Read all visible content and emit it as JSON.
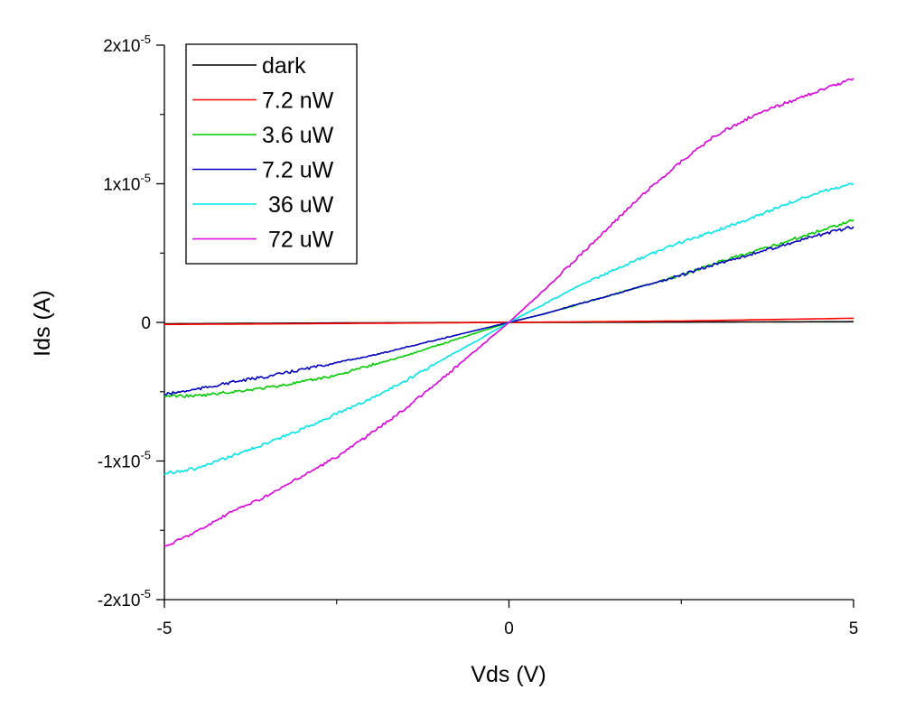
{
  "chart_data": {
    "type": "line",
    "xlabel": "Vds (V)",
    "ylabel": "Ids (A)",
    "xlim": [
      -5,
      5
    ],
    "ylim": [
      -2e-05,
      2e-05
    ],
    "x_ticks": [
      {
        "value": -5,
        "label": "-5"
      },
      {
        "value": 0,
        "label": "0"
      },
      {
        "value": 5,
        "label": "5"
      }
    ],
    "y_ticks": [
      {
        "value": 2e-05,
        "mantissa": "2x10",
        "exponent": "-5"
      },
      {
        "value": 1e-05,
        "mantissa": "1x10",
        "exponent": "-5"
      },
      {
        "value": 0,
        "mantissa": "0",
        "exponent": ""
      },
      {
        "value": -1e-05,
        "mantissa": "-1x10",
        "exponent": "-5"
      },
      {
        "value": -2e-05,
        "mantissa": "-2x10",
        "exponent": "-5"
      }
    ],
    "legend_position": "top-left",
    "grid": false,
    "series": [
      {
        "name": "dark",
        "color": "#000000",
        "points": [
          [
            -5,
            -1e-07
          ],
          [
            -2.5,
            -4e-08
          ],
          [
            0,
            0
          ],
          [
            2.5,
            2e-08
          ],
          [
            5,
            5e-08
          ]
        ]
      },
      {
        "name": "7.2 nW",
        "color": "#ff0000",
        "points": [
          [
            -5,
            -1.5e-07
          ],
          [
            -2.5,
            -8e-08
          ],
          [
            0,
            0
          ],
          [
            2.5,
            1e-07
          ],
          [
            5,
            3e-07
          ]
        ]
      },
      {
        "name": "3.6 uW",
        "color": "#00cc00",
        "points": [
          [
            -5,
            -5.3e-06
          ],
          [
            -4.5,
            -5.3e-06
          ],
          [
            -4,
            -5e-06
          ],
          [
            -3.5,
            -4.7e-06
          ],
          [
            -3,
            -4.3e-06
          ],
          [
            -2.5,
            -3.8e-06
          ],
          [
            -2,
            -3.1e-06
          ],
          [
            -1.5,
            -2.4e-06
          ],
          [
            -1,
            -1.6e-06
          ],
          [
            -0.5,
            -8e-07
          ],
          [
            0,
            0
          ],
          [
            0.5,
            6e-07
          ],
          [
            1,
            1.3e-06
          ],
          [
            1.5,
            2e-06
          ],
          [
            2,
            2.7e-06
          ],
          [
            2.5,
            3.4e-06
          ],
          [
            3,
            4.3e-06
          ],
          [
            3.5,
            5e-06
          ],
          [
            4,
            5.8e-06
          ],
          [
            4.5,
            6.6e-06
          ],
          [
            5,
            7.4e-06
          ]
        ]
      },
      {
        "name": "7.2 uW",
        "color": "#0000c0",
        "points": [
          [
            -5,
            -5.2e-06
          ],
          [
            -4.5,
            -4.8e-06
          ],
          [
            -4,
            -4.3e-06
          ],
          [
            -3.5,
            -3.9e-06
          ],
          [
            -3,
            -3.4e-06
          ],
          [
            -2.5,
            -2.9e-06
          ],
          [
            -2,
            -2.4e-06
          ],
          [
            -1.5,
            -1.8e-06
          ],
          [
            -1,
            -1.2e-06
          ],
          [
            -0.5,
            -6e-07
          ],
          [
            0,
            0
          ],
          [
            0.5,
            6e-07
          ],
          [
            1,
            1.3e-06
          ],
          [
            1.5,
            2e-06
          ],
          [
            2,
            2.7e-06
          ],
          [
            2.5,
            3.4e-06
          ],
          [
            3,
            4.2e-06
          ],
          [
            3.5,
            4.9e-06
          ],
          [
            4,
            5.6e-06
          ],
          [
            4.5,
            6.3e-06
          ],
          [
            5,
            6.9e-06
          ]
        ]
      },
      {
        "name": " 36 uW",
        "color": "#00e5e5",
        "points": [
          [
            -5,
            -1.09e-05
          ],
          [
            -4.5,
            -1.05e-05
          ],
          [
            -4,
            -9.6e-06
          ],
          [
            -3.5,
            -8.7e-06
          ],
          [
            -3,
            -7.7e-06
          ],
          [
            -2.5,
            -6.6e-06
          ],
          [
            -2,
            -5.5e-06
          ],
          [
            -1.5,
            -4.2e-06
          ],
          [
            -1,
            -2.8e-06
          ],
          [
            -0.5,
            -1.4e-06
          ],
          [
            0,
            0
          ],
          [
            0.5,
            1.3e-06
          ],
          [
            1,
            2.6e-06
          ],
          [
            1.5,
            3.7e-06
          ],
          [
            2,
            4.8e-06
          ],
          [
            2.5,
            5.8e-06
          ],
          [
            3,
            6.6e-06
          ],
          [
            3.5,
            7.5e-06
          ],
          [
            4,
            8.5e-06
          ],
          [
            4.5,
            9.4e-06
          ],
          [
            5,
            1e-05
          ]
        ]
      },
      {
        "name": " 72 uW",
        "color": "#dd00dd",
        "points": [
          [
            -5,
            -1.62e-05
          ],
          [
            -4.5,
            -1.5e-05
          ],
          [
            -4,
            -1.36e-05
          ],
          [
            -3.5,
            -1.25e-05
          ],
          [
            -3,
            -1.11e-05
          ],
          [
            -2.5,
            -9.7e-06
          ],
          [
            -2,
            -8e-06
          ],
          [
            -1.5,
            -6.2e-06
          ],
          [
            -1,
            -4.2e-06
          ],
          [
            -0.5,
            -2.1e-06
          ],
          [
            0,
            0
          ],
          [
            0.5,
            2.3e-06
          ],
          [
            1,
            4.7e-06
          ],
          [
            1.5,
            7.1e-06
          ],
          [
            2,
            9.5e-06
          ],
          [
            2.5,
            1.16e-05
          ],
          [
            3,
            1.35e-05
          ],
          [
            3.5,
            1.48e-05
          ],
          [
            4,
            1.58e-05
          ],
          [
            4.5,
            1.67e-05
          ],
          [
            5,
            1.76e-05
          ]
        ]
      }
    ]
  }
}
